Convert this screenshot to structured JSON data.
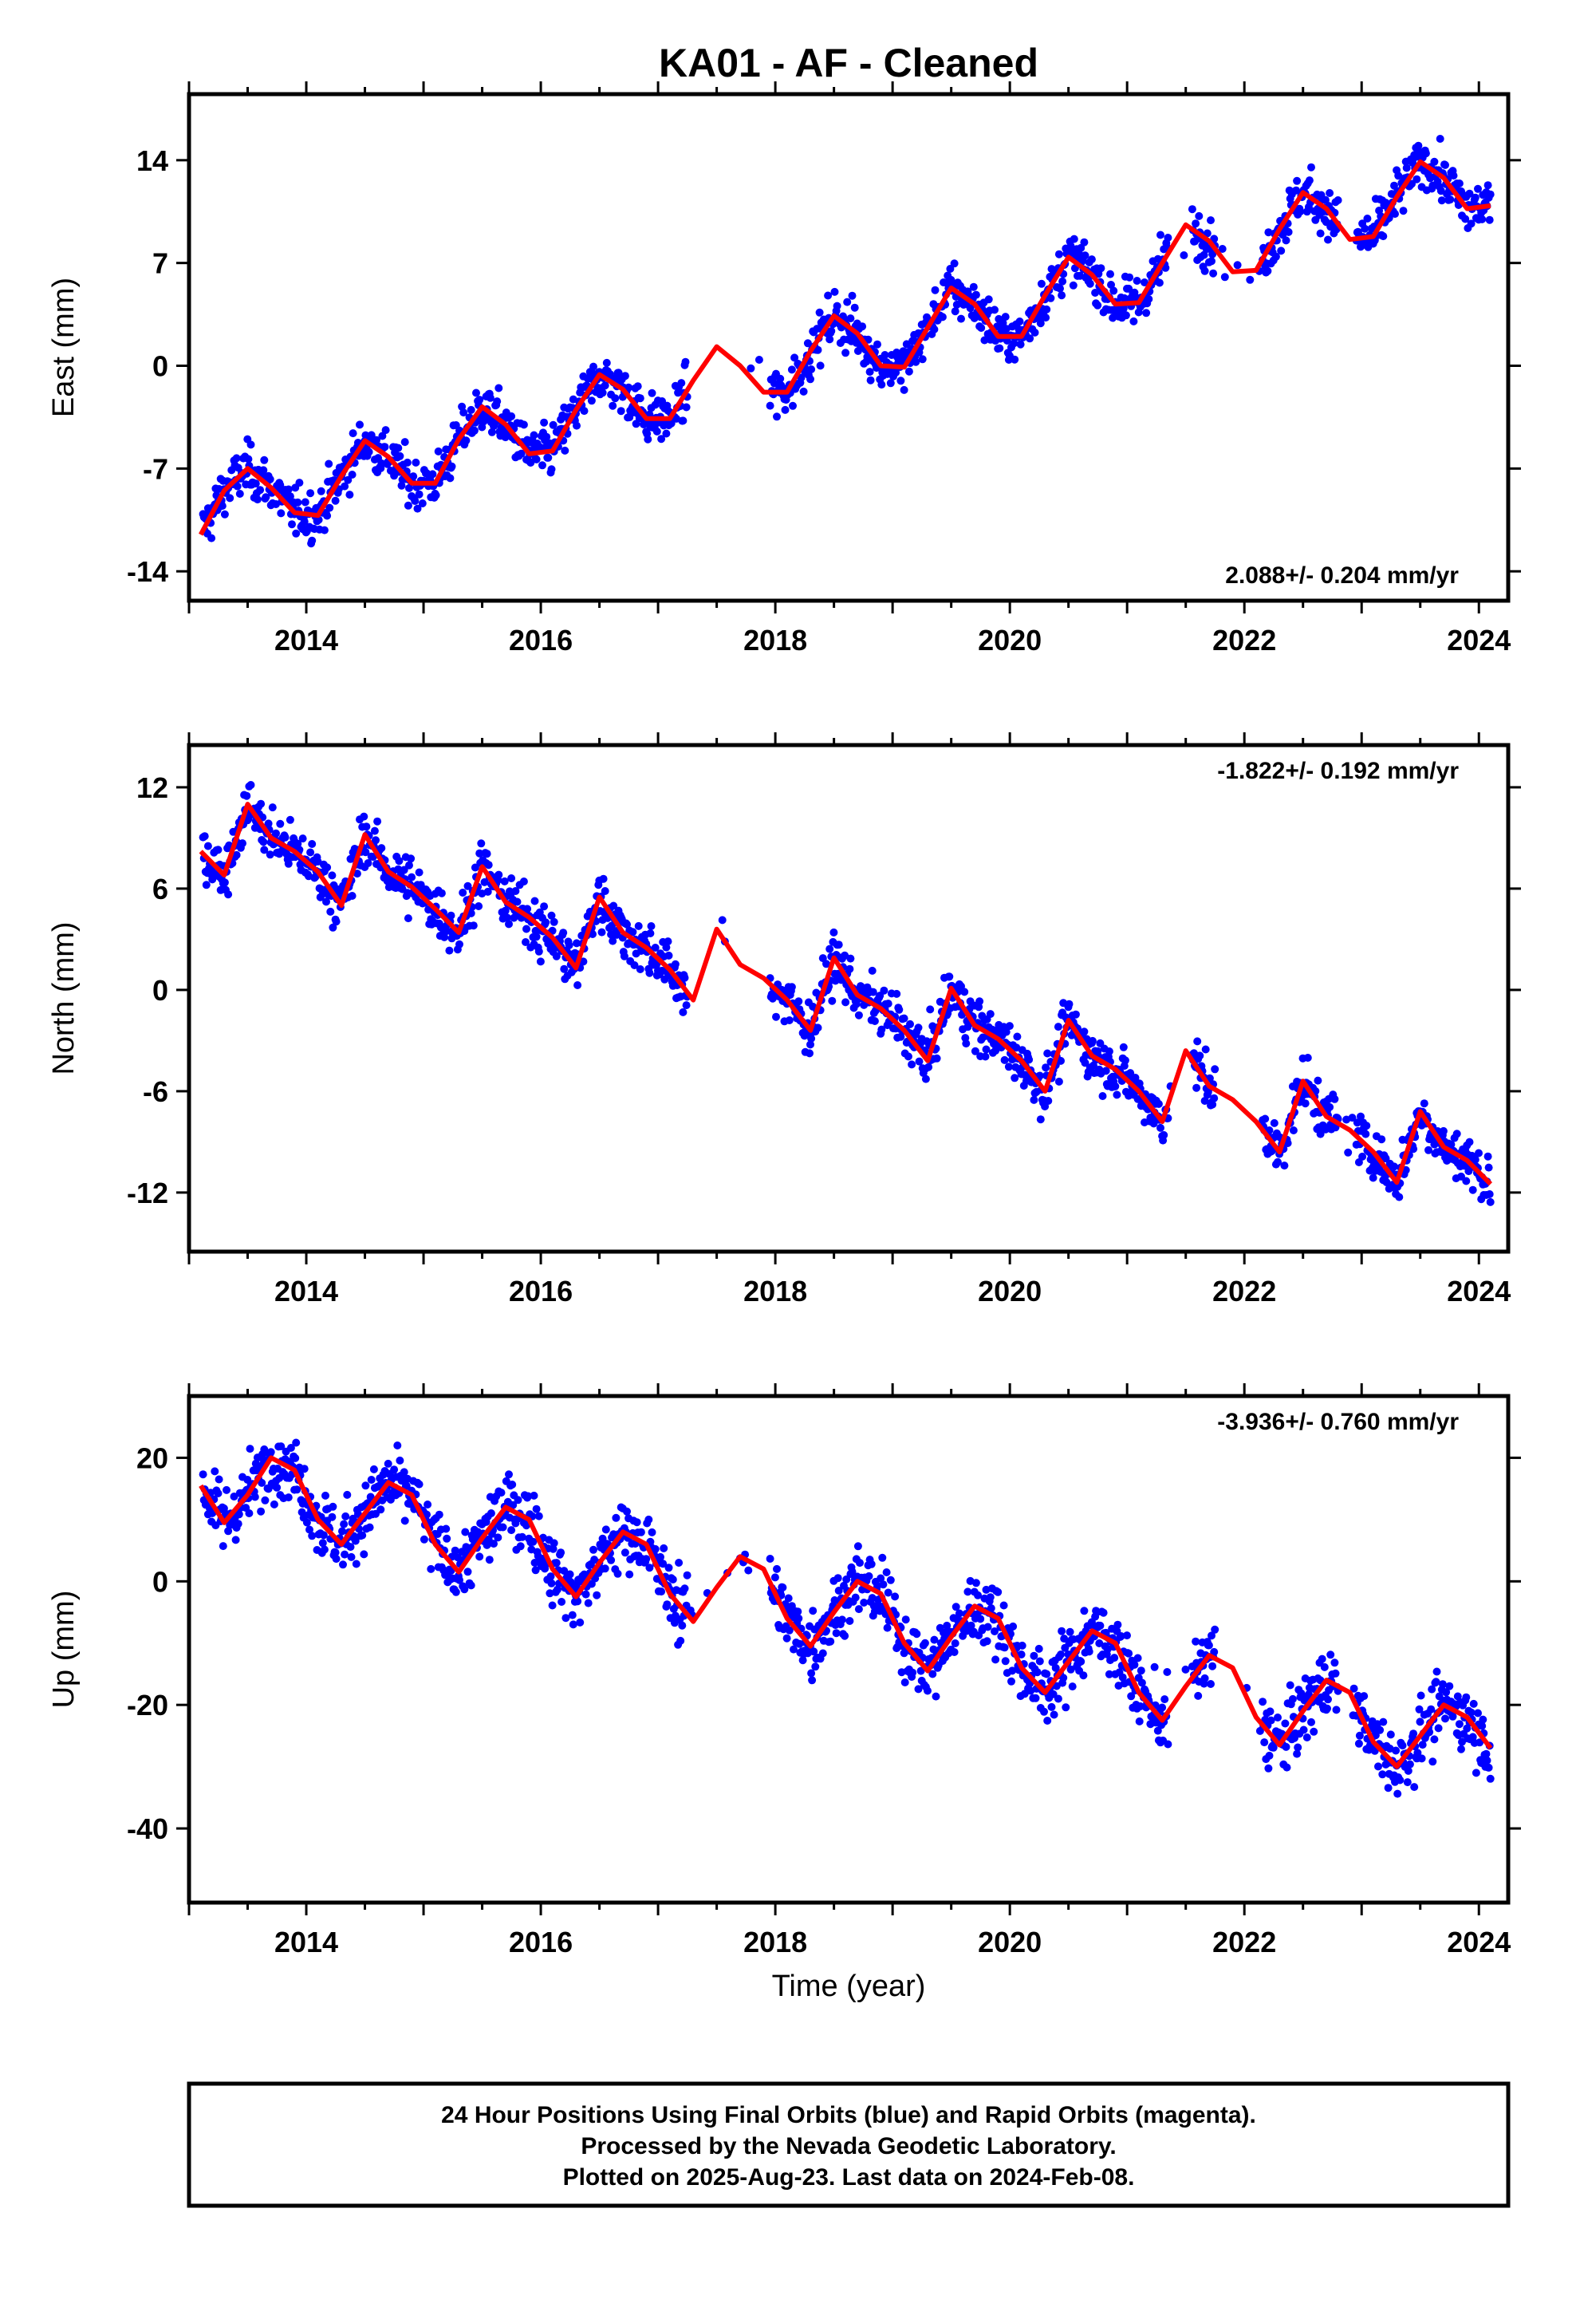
{
  "figure": {
    "title": "KA01  - AF - Cleaned",
    "xlabel": "Time (year)",
    "footer_lines": [
      "24 Hour Positions Using Final Orbits (blue) and Rapid Orbits (magenta).",
      "Processed by the Nevada Geodetic Laboratory.",
      "Plotted on 2025-Aug-23. Last data on 2024-Feb-08."
    ],
    "colors": {
      "points": "#0000ff",
      "model": "#ff0000",
      "frame": "#000000"
    }
  },
  "chart_data": [
    {
      "type": "scatter",
      "ylabel": "East (mm)",
      "rate_label": "2.088+/- 0.204 mm/yr",
      "rate_position": "bottom-right",
      "xlim": [
        2013.0,
        2024.25
      ],
      "ylim": [
        -16,
        18.5
      ],
      "xticks": [
        "2014",
        "2016",
        "2018",
        "2020",
        "2022",
        "2024"
      ],
      "yticks": [
        "-14",
        "-7",
        "0",
        "7",
        "14"
      ],
      "ytick_values": [
        -14,
        -7,
        0,
        7,
        14
      ],
      "model_curve": {
        "x": [
          2013.1,
          2013.3,
          2013.5,
          2013.7,
          2013.9,
          2014.1,
          2014.3,
          2014.5,
          2014.7,
          2014.9,
          2015.1,
          2015.3,
          2015.5,
          2015.7,
          2015.9,
          2016.1,
          2016.3,
          2016.5,
          2016.7,
          2016.9,
          2017.1,
          2017.3,
          2017.5,
          2017.7,
          2017.9,
          2018.1,
          2018.3,
          2018.5,
          2018.7,
          2018.9,
          2019.1,
          2019.3,
          2019.5,
          2019.7,
          2019.9,
          2020.1,
          2020.3,
          2020.5,
          2020.7,
          2020.9,
          2021.1,
          2021.3,
          2021.5,
          2021.7,
          2021.9,
          2022.1,
          2022.3,
          2022.5,
          2022.7,
          2022.9,
          2023.1,
          2023.3,
          2023.5,
          2023.7,
          2023.9,
          2024.1
        ],
        "y": [
          -11.5,
          -8.5,
          -7.0,
          -8.3,
          -10.0,
          -10.2,
          -7.5,
          -5.1,
          -6.2,
          -8.0,
          -8.0,
          -5.0,
          -2.8,
          -4.0,
          -6.0,
          -5.8,
          -3.0,
          -0.6,
          -1.6,
          -3.6,
          -3.6,
          -1.0,
          1.3,
          0.0,
          -1.8,
          -1.8,
          1.0,
          3.4,
          2.2,
          0.0,
          -0.1,
          2.6,
          5.3,
          4.2,
          2.0,
          2.0,
          4.8,
          7.4,
          6.2,
          4.2,
          4.3,
          7.0,
          9.6,
          8.5,
          6.4,
          6.5,
          9.3,
          11.8,
          10.7,
          8.6,
          8.8,
          11.5,
          13.9,
          12.8,
          10.7,
          10.9
        ]
      }
    },
    {
      "type": "scatter",
      "ylabel": "North (mm)",
      "rate_label": "-1.822+/- 0.192 mm/yr",
      "rate_position": "top-right",
      "xlim": [
        2013.0,
        2024.25
      ],
      "ylim": [
        -15.5,
        14.5
      ],
      "xticks": [
        "2014",
        "2016",
        "2018",
        "2020",
        "2022",
        "2024"
      ],
      "yticks": [
        "-12",
        "-6",
        "0",
        "6",
        "12"
      ],
      "ytick_values": [
        -12,
        -6,
        0,
        6,
        12
      ],
      "model_curve": {
        "x": [
          2013.1,
          2013.3,
          2013.5,
          2013.7,
          2013.9,
          2014.1,
          2014.3,
          2014.5,
          2014.7,
          2014.9,
          2015.1,
          2015.3,
          2015.5,
          2015.7,
          2015.9,
          2016.1,
          2016.3,
          2016.5,
          2016.7,
          2016.9,
          2017.1,
          2017.3,
          2017.5,
          2017.7,
          2017.9,
          2018.1,
          2018.3,
          2018.5,
          2018.7,
          2018.9,
          2019.1,
          2019.3,
          2019.5,
          2019.7,
          2019.9,
          2020.1,
          2020.3,
          2020.5,
          2020.7,
          2020.9,
          2021.1,
          2021.3,
          2021.5,
          2021.7,
          2021.9,
          2022.1,
          2022.3,
          2022.5,
          2022.7,
          2022.9,
          2023.1,
          2023.3,
          2023.5,
          2023.7,
          2023.9,
          2024.1
        ],
        "y": [
          8.2,
          6.8,
          11.0,
          9.0,
          8.2,
          7.0,
          5.0,
          9.2,
          7.0,
          6.1,
          4.8,
          3.4,
          7.3,
          5.2,
          4.3,
          3.1,
          1.3,
          5.5,
          3.4,
          2.5,
          1.2,
          -0.6,
          3.6,
          1.5,
          0.7,
          -0.6,
          -2.4,
          1.9,
          -0.3,
          -1.1,
          -2.4,
          -4.2,
          0.1,
          -2.1,
          -2.9,
          -4.2,
          -6.0,
          -1.8,
          -3.9,
          -4.7,
          -6.0,
          -7.8,
          -3.6,
          -5.7,
          -6.5,
          -7.8,
          -9.6,
          -5.4,
          -7.5,
          -8.3,
          -9.6,
          -11.4,
          -7.2,
          -9.3,
          -10.1,
          -11.5
        ]
      }
    },
    {
      "type": "scatter",
      "ylabel": "Up (mm)",
      "rate_label": "-3.936+/- 0.760 mm/yr",
      "rate_position": "top-right",
      "xlim": [
        2013.0,
        2024.25
      ],
      "ylim": [
        -52,
        30
      ],
      "xticks": [
        "2014",
        "2016",
        "2018",
        "2020",
        "2022",
        "2024"
      ],
      "yticks": [
        "-40",
        "-20",
        "0",
        "20"
      ],
      "ytick_values": [
        -40,
        -20,
        0,
        20
      ],
      "model_curve": {
        "x": [
          2013.1,
          2013.3,
          2013.5,
          2013.7,
          2013.9,
          2014.1,
          2014.3,
          2014.5,
          2014.7,
          2014.9,
          2015.1,
          2015.3,
          2015.5,
          2015.7,
          2015.9,
          2016.1,
          2016.3,
          2016.5,
          2016.7,
          2016.9,
          2017.1,
          2017.3,
          2017.5,
          2017.7,
          2017.9,
          2018.1,
          2018.3,
          2018.5,
          2018.7,
          2018.9,
          2019.1,
          2019.3,
          2019.5,
          2019.7,
          2019.9,
          2020.1,
          2020.3,
          2020.5,
          2020.7,
          2020.9,
          2021.1,
          2021.3,
          2021.5,
          2021.7,
          2021.9,
          2022.1,
          2022.3,
          2022.5,
          2022.7,
          2022.9,
          2023.1,
          2023.3,
          2023.5,
          2023.7,
          2023.9,
          2024.1
        ],
        "y": [
          15.5,
          9.5,
          14.0,
          20.0,
          18.0,
          10.0,
          6.0,
          11.0,
          16.0,
          14.0,
          6.0,
          1.5,
          7.0,
          12.0,
          10.0,
          2.0,
          -2.5,
          3.0,
          8.0,
          6.0,
          -2.0,
          -6.5,
          -1.0,
          4.0,
          2.0,
          -6.0,
          -10.5,
          -5.0,
          0.0,
          -2.0,
          -10.0,
          -14.5,
          -9.0,
          -4.0,
          -6.0,
          -14.0,
          -18.0,
          -13.0,
          -8.0,
          -10.0,
          -18.0,
          -22.5,
          -17.0,
          -12.0,
          -14.0,
          -22.0,
          -26.5,
          -21.0,
          -16.0,
          -18.0,
          -26.0,
          -30.0,
          -25.0,
          -20.0,
          -22.0,
          -27.0
        ]
      }
    }
  ]
}
